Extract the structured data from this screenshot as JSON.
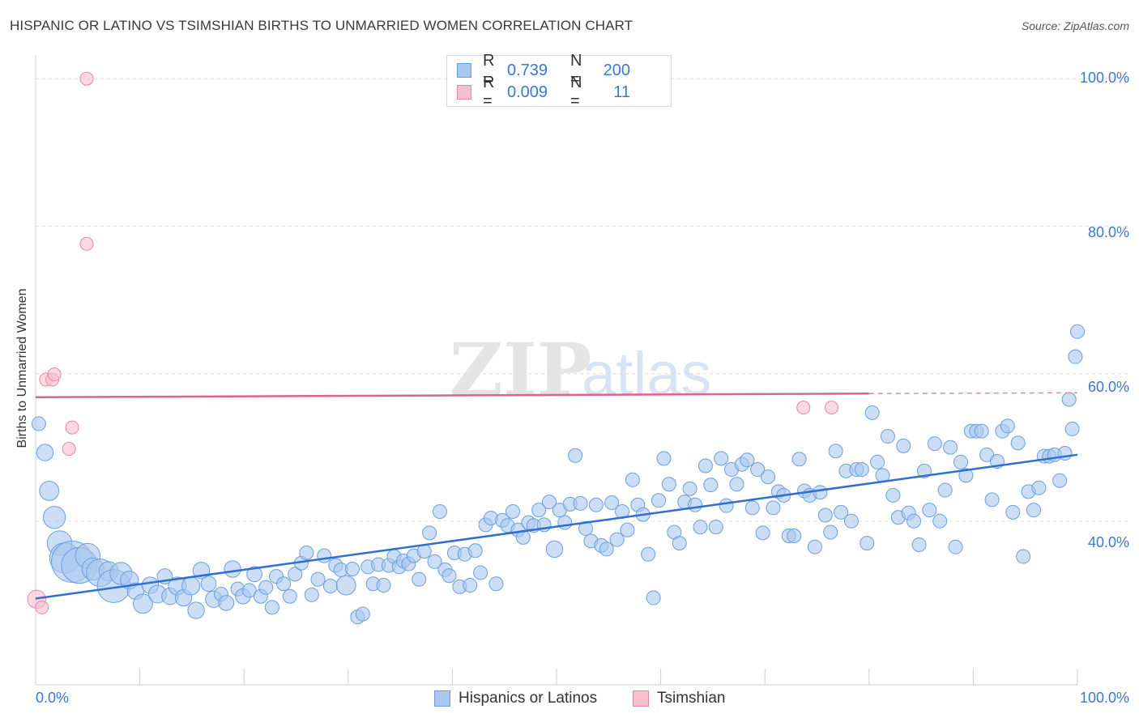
{
  "title": "HISPANIC OR LATINO VS TSIMSHIAN BIRTHS TO UNMARRIED WOMEN CORRELATION CHART",
  "source": "Source: ZipAtlas.com",
  "watermark": {
    "zip": "ZIP",
    "atlas": "atlas"
  },
  "stats": {
    "row1": {
      "r_label": "R =",
      "r_value": "0.739",
      "n_label": "N =",
      "n_value": "200"
    },
    "row2": {
      "r_label": "R =",
      "r_value": "0.009",
      "n_label": "N =",
      "n_value": "11"
    }
  },
  "legend": {
    "series1": "Hispanics or Latinos",
    "series2": "Tsimshian"
  },
  "colors": {
    "blue_fill": "#a8c8f0",
    "blue_stroke": "#6b9fdc",
    "blue_line": "#2f6fcf",
    "pink_fill": "#f8c0cf",
    "pink_stroke": "#e8879f",
    "pink_line": "#e0628a",
    "tick_text": "#3a78d1",
    "grid": "#dddddd"
  },
  "chart_data": {
    "type": "scatter",
    "title": "HISPANIC OR LATINO VS TSIMSHIAN BIRTHS TO UNMARRIED WOMEN CORRELATION CHART",
    "xlabel": "",
    "ylabel": "Births to Unmarried Women",
    "xlim": [
      0,
      100
    ],
    "ylim": [
      20,
      102
    ],
    "x_tick_labels": [
      "0.0%",
      "100.0%"
    ],
    "y_tick_labels": [
      "40.0%",
      "60.0%",
      "80.0%",
      "100.0%"
    ],
    "y_ticks": [
      40,
      60,
      80,
      100
    ],
    "grid": "horizontal dashed",
    "legend_position": "bottom-center",
    "series": [
      {
        "name": "Hispanics or Latinos",
        "trend": {
          "x": [
            0,
            100
          ],
          "y": [
            29.5,
            49.0
          ]
        },
        "points": [
          [
            0.3,
            53.2,
            1
          ],
          [
            0.9,
            49.3,
            1.2
          ],
          [
            1.3,
            44.1,
            1.4
          ],
          [
            1.8,
            40.5,
            1.6
          ],
          [
            2.3,
            37.0,
            1.8
          ],
          [
            2.8,
            35.0,
            2.2
          ],
          [
            3.5,
            34.5,
            3
          ],
          [
            4.2,
            34.0,
            2.6
          ],
          [
            5.0,
            35.3,
            1.8
          ],
          [
            5.5,
            33.5,
            1.6
          ],
          [
            6.2,
            33.0,
            2
          ],
          [
            7.0,
            33.2,
            1.4
          ],
          [
            7.5,
            31.2,
            2.4
          ],
          [
            8.2,
            32.9,
            1.6
          ],
          [
            9.0,
            32.0,
            1.3
          ],
          [
            9.6,
            30.5,
            1.2
          ],
          [
            10.3,
            28.8,
            1.4
          ],
          [
            11.0,
            31.3,
            1.2
          ],
          [
            11.7,
            30.1,
            1.3
          ],
          [
            12.4,
            32.5,
            1.1
          ],
          [
            12.9,
            29.8,
            1.2
          ],
          [
            13.6,
            31.2,
            1.3
          ],
          [
            14.2,
            29.6,
            1.2
          ],
          [
            14.9,
            31.2,
            1.3
          ],
          [
            15.4,
            27.9,
            1.2
          ],
          [
            15.9,
            33.3,
            1.2
          ],
          [
            16.6,
            31.5,
            1.1
          ],
          [
            17.1,
            29.4,
            1.2
          ],
          [
            17.8,
            30.1,
            1.0
          ],
          [
            18.3,
            28.9,
            1.1
          ],
          [
            18.9,
            33.5,
            1.2
          ],
          [
            19.4,
            30.8,
            1.0
          ],
          [
            19.9,
            29.8,
            1.1
          ],
          [
            20.5,
            30.6,
            1.0
          ],
          [
            21.0,
            32.8,
            1.1
          ],
          [
            21.6,
            29.8,
            1.0
          ],
          [
            22.1,
            31.0,
            1.0
          ],
          [
            22.7,
            28.3,
            1.0
          ],
          [
            23.1,
            32.5,
            1.0
          ],
          [
            23.8,
            31.5,
            1.0
          ],
          [
            24.4,
            29.8,
            1.0
          ],
          [
            24.9,
            32.8,
            1.0
          ],
          [
            25.5,
            34.3,
            1.0
          ],
          [
            26.0,
            35.7,
            1.0
          ],
          [
            26.5,
            30.0,
            1.0
          ],
          [
            27.1,
            32.1,
            1.0
          ],
          [
            27.7,
            35.3,
            1.0
          ],
          [
            28.3,
            31.2,
            1.0
          ],
          [
            28.8,
            34.0,
            1.0
          ],
          [
            29.3,
            33.4,
            1.0
          ],
          [
            29.8,
            31.3,
            1.4
          ],
          [
            30.4,
            33.5,
            1.0
          ],
          [
            30.9,
            27.0,
            1.0
          ],
          [
            31.4,
            27.4,
            1.0
          ],
          [
            31.9,
            33.8,
            1.0
          ],
          [
            32.4,
            31.5,
            1.0
          ],
          [
            32.9,
            34.1,
            1.0
          ],
          [
            33.4,
            31.3,
            1.0
          ],
          [
            33.9,
            34.0,
            1.0
          ],
          [
            34.4,
            35.2,
            1.0
          ],
          [
            34.9,
            33.8,
            1.0
          ],
          [
            35.3,
            34.6,
            1.0
          ],
          [
            35.8,
            34.2,
            1.0
          ],
          [
            36.3,
            35.3,
            1.0
          ],
          [
            36.8,
            32.1,
            1.0
          ],
          [
            37.3,
            35.9,
            1.0
          ],
          [
            37.8,
            38.4,
            1.0
          ],
          [
            38.3,
            34.5,
            1.0
          ],
          [
            38.8,
            41.3,
            1.0
          ],
          [
            39.3,
            33.4,
            1.0
          ],
          [
            39.7,
            32.6,
            1.0
          ],
          [
            40.2,
            35.7,
            1.0
          ],
          [
            40.7,
            31.1,
            1.0
          ],
          [
            41.2,
            35.5,
            1.0
          ],
          [
            41.7,
            31.3,
            1.0
          ],
          [
            42.2,
            36.0,
            1.0
          ],
          [
            42.7,
            33.0,
            1.0
          ],
          [
            43.2,
            39.5,
            1.0
          ],
          [
            43.7,
            40.4,
            1.0
          ],
          [
            44.2,
            31.5,
            1.0
          ],
          [
            44.8,
            40.1,
            1.0
          ],
          [
            45.3,
            39.4,
            1.0
          ],
          [
            45.8,
            41.3,
            1.0
          ],
          [
            46.3,
            38.8,
            1.0
          ],
          [
            46.8,
            37.8,
            1.0
          ],
          [
            47.3,
            39.8,
            1.0
          ],
          [
            47.8,
            39.4,
            1.0
          ],
          [
            48.3,
            41.5,
            1.0
          ],
          [
            48.8,
            39.5,
            1.0
          ],
          [
            49.3,
            42.6,
            1.0
          ],
          [
            49.8,
            36.2,
            1.2
          ],
          [
            50.3,
            41.5,
            1.0
          ],
          [
            50.8,
            39.8,
            1.0
          ],
          [
            51.3,
            42.3,
            1.0
          ],
          [
            51.8,
            48.9,
            1.0
          ],
          [
            52.3,
            42.4,
            1.0
          ],
          [
            52.8,
            39.0,
            1.0
          ],
          [
            53.3,
            37.3,
            1.0
          ],
          [
            53.8,
            42.2,
            1.0
          ],
          [
            54.3,
            36.7,
            1.0
          ],
          [
            54.8,
            36.2,
            1.0
          ],
          [
            55.3,
            42.5,
            1.0
          ],
          [
            55.8,
            37.5,
            1.0
          ],
          [
            56.3,
            41.3,
            1.0
          ],
          [
            56.8,
            38.8,
            1.0
          ],
          [
            57.3,
            45.6,
            1.0
          ],
          [
            57.8,
            42.2,
            1.0
          ],
          [
            58.3,
            40.9,
            1.0
          ],
          [
            58.8,
            35.5,
            1.0
          ],
          [
            59.3,
            29.6,
            1.0
          ],
          [
            59.8,
            42.8,
            1.0
          ],
          [
            60.3,
            48.5,
            1.0
          ],
          [
            60.8,
            45.0,
            1.0
          ],
          [
            61.3,
            38.5,
            1.0
          ],
          [
            61.8,
            37.0,
            1.0
          ],
          [
            62.3,
            42.6,
            1.0
          ],
          [
            62.8,
            44.4,
            1.0
          ],
          [
            63.3,
            42.2,
            1.0
          ],
          [
            63.8,
            39.2,
            1.0
          ],
          [
            64.3,
            47.5,
            1.0
          ],
          [
            64.8,
            44.9,
            1.0
          ],
          [
            65.3,
            39.2,
            1.0
          ],
          [
            65.8,
            48.5,
            1.0
          ],
          [
            66.3,
            42.1,
            1.0
          ],
          [
            66.8,
            47.0,
            1.0
          ],
          [
            67.3,
            45.0,
            1.0
          ],
          [
            67.8,
            47.7,
            1.0
          ],
          [
            68.3,
            48.3,
            1.0
          ],
          [
            68.8,
            41.8,
            1.0
          ],
          [
            69.3,
            47.0,
            1.0
          ],
          [
            69.8,
            38.4,
            1.0
          ],
          [
            70.3,
            46.0,
            1.0
          ],
          [
            70.8,
            41.8,
            1.0
          ],
          [
            71.3,
            44.0,
            1.0
          ],
          [
            71.8,
            43.5,
            1.0
          ],
          [
            72.3,
            38.0,
            1.0
          ],
          [
            72.8,
            38.0,
            1.0
          ],
          [
            73.3,
            48.4,
            1.0
          ],
          [
            73.8,
            44.1,
            1.0
          ],
          [
            74.3,
            43.5,
            1.0
          ],
          [
            74.8,
            36.5,
            1.0
          ],
          [
            75.3,
            43.9,
            1.0
          ],
          [
            75.8,
            40.8,
            1.0
          ],
          [
            76.3,
            38.5,
            1.0
          ],
          [
            76.8,
            49.5,
            1.0
          ],
          [
            77.3,
            41.2,
            1.0
          ],
          [
            77.8,
            46.8,
            1.0
          ],
          [
            78.3,
            40.0,
            1.0
          ],
          [
            78.8,
            47.0,
            1.0
          ],
          [
            79.3,
            47.0,
            1.0
          ],
          [
            79.8,
            37.0,
            1.0
          ],
          [
            80.3,
            54.7,
            1.0
          ],
          [
            80.8,
            48.0,
            1.0
          ],
          [
            81.3,
            46.2,
            1.0
          ],
          [
            81.8,
            51.5,
            1.0
          ],
          [
            82.3,
            43.5,
            1.0
          ],
          [
            82.8,
            40.5,
            1.0
          ],
          [
            83.3,
            50.2,
            1.0
          ],
          [
            83.8,
            41.1,
            1.0
          ],
          [
            84.3,
            40.0,
            1.0
          ],
          [
            84.8,
            36.8,
            1.0
          ],
          [
            85.3,
            46.8,
            1.0
          ],
          [
            85.8,
            41.5,
            1.0
          ],
          [
            86.3,
            50.5,
            1.0
          ],
          [
            86.8,
            40.0,
            1.0
          ],
          [
            87.3,
            44.2,
            1.0
          ],
          [
            87.8,
            50.0,
            1.0
          ],
          [
            88.3,
            36.5,
            1.0
          ],
          [
            88.8,
            48.0,
            1.0
          ],
          [
            89.3,
            46.2,
            1.0
          ],
          [
            89.8,
            52.2,
            1.0
          ],
          [
            90.3,
            52.2,
            1.0
          ],
          [
            90.8,
            52.2,
            1.0
          ],
          [
            91.3,
            49.0,
            1.0
          ],
          [
            91.8,
            42.9,
            1.0
          ],
          [
            92.3,
            48.1,
            1.0
          ],
          [
            92.8,
            52.2,
            1.0
          ],
          [
            93.3,
            52.9,
            1.0
          ],
          [
            93.8,
            41.2,
            1.0
          ],
          [
            94.3,
            50.6,
            1.0
          ],
          [
            94.8,
            35.2,
            1.0
          ],
          [
            95.3,
            44.0,
            1.0
          ],
          [
            95.8,
            41.5,
            1.0
          ],
          [
            96.3,
            44.5,
            1.0
          ],
          [
            96.8,
            48.8,
            1.0
          ],
          [
            97.3,
            48.8,
            1.0
          ],
          [
            97.8,
            49.0,
            1.0
          ],
          [
            98.3,
            45.5,
            1.0
          ],
          [
            98.8,
            49.2,
            1.0
          ],
          [
            99.2,
            56.5,
            1.0
          ],
          [
            99.5,
            52.5,
            1.0
          ],
          [
            99.8,
            62.3,
            1.0
          ],
          [
            100.0,
            65.7,
            1.0
          ]
        ]
      },
      {
        "name": "Tsimshian",
        "trend": {
          "x": [
            0,
            80
          ],
          "y": [
            56.8,
            57.3
          ]
        },
        "trend_dashed_extension": {
          "x": [
            80,
            100
          ],
          "y": [
            57.3,
            57.4
          ]
        },
        "points": [
          [
            0.1,
            29.4,
            1.4
          ],
          [
            0.6,
            28.3,
            1.0
          ],
          [
            1.0,
            59.2,
            1.0
          ],
          [
            1.6,
            59.2,
            1.0
          ],
          [
            1.8,
            59.9,
            1.0
          ],
          [
            3.2,
            49.8,
            1.0
          ],
          [
            3.5,
            52.7,
            1.0
          ],
          [
            4.9,
            100.0,
            1.0
          ],
          [
            4.9,
            77.6,
            1.0
          ],
          [
            73.7,
            55.4,
            1.0
          ],
          [
            76.4,
            55.4,
            1.0
          ]
        ]
      }
    ]
  }
}
